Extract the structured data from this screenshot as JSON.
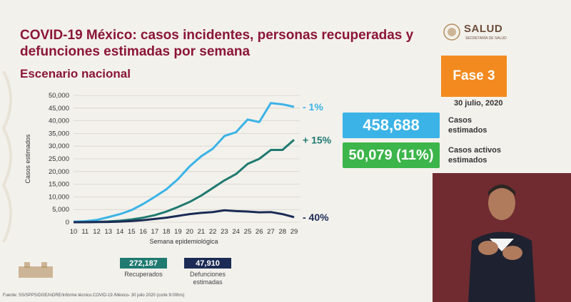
{
  "title": "COVID-19 México: casos incidentes, personas recuperadas y defunciones estimadas por semana",
  "subtitle": "Escenario nacional",
  "logo_text": "SALUD",
  "logo_subtext": "SECRETARÍA DE SALUD",
  "phase_label": "Fase 3",
  "date": "30 julio, 2020",
  "stats": {
    "casos_value": "458,688",
    "casos_label_1": "Casos",
    "casos_label_2": "estimados",
    "activos_value": "50,079 (11%)",
    "activos_label_1": "Casos activos",
    "activos_label_2": "estimados"
  },
  "kpis": {
    "recuperados_value": "272,187",
    "recuperados_label": "Recuperados",
    "defunciones_value": "47,910",
    "defunciones_label_1": "Defunciones",
    "defunciones_label_2": "estimadas"
  },
  "source": "Fuente: SS/SPPS/DGE/InDRE/Informe técnico.COVID-19 /México- 30 julio 2020 (corte 9:00hrs)",
  "colors": {
    "casos": "#3bb3e6",
    "recuperados": "#1f7a70",
    "defunciones": "#1c2b55",
    "activos": "#3cb54a",
    "fase": "#f38a1f",
    "title": "#8b1538"
  },
  "chart_data": {
    "type": "line",
    "xlabel": "Semana epidemiológica",
    "ylabel": "Casos estimados",
    "x": [
      10,
      11,
      12,
      13,
      14,
      15,
      16,
      17,
      18,
      19,
      20,
      21,
      22,
      23,
      24,
      25,
      26,
      27,
      28,
      29
    ],
    "ylim": [
      0,
      50000
    ],
    "yticks": [
      0,
      5000,
      10000,
      15000,
      20000,
      25000,
      30000,
      35000,
      40000,
      45000,
      50000
    ],
    "ytick_labels": [
      "0",
      "5,000",
      "10,000",
      "15,000",
      "20,000",
      "25,000",
      "30,000",
      "35,000",
      "40,000",
      "45,000",
      "50,000"
    ],
    "grid": true,
    "series": [
      {
        "key": "casos",
        "values": [
          200,
          400,
          900,
          2000,
          3200,
          4800,
          7200,
          10000,
          13000,
          17000,
          22000,
          26000,
          29000,
          34000,
          35500,
          40500,
          39500,
          47000,
          46500,
          45500
        ],
        "annotation": "- 1%"
      },
      {
        "key": "recuperados",
        "values": [
          0,
          50,
          150,
          300,
          600,
          1100,
          1800,
          2800,
          4200,
          6000,
          8000,
          10500,
          13500,
          16500,
          19000,
          23000,
          25000,
          28500,
          28500,
          32500
        ],
        "annotation": "+ 15%"
      },
      {
        "key": "defunciones",
        "values": [
          0,
          20,
          60,
          120,
          250,
          450,
          800,
          1300,
          1800,
          2500,
          3200,
          3700,
          4000,
          4700,
          4400,
          4200,
          3900,
          4000,
          3200,
          2000
        ],
        "annotation": "- 40%"
      }
    ]
  }
}
